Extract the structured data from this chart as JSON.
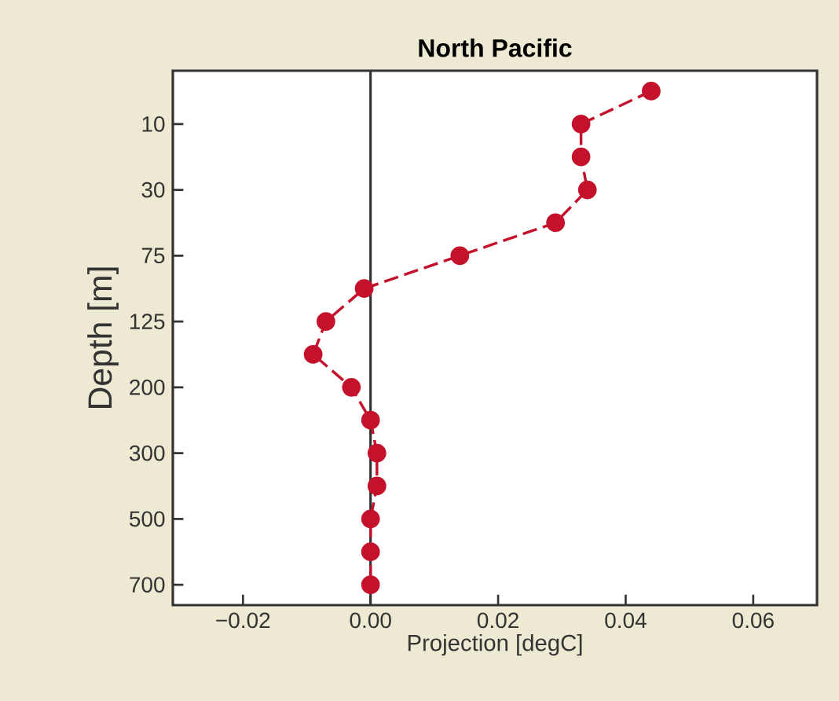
{
  "chart_data": {
    "type": "line",
    "title": "North Pacific",
    "xlabel": "Projection [degC]",
    "ylabel": "Depth [m]",
    "orientation": "horizontal",
    "categories": [
      null,
      "10",
      null,
      "30",
      null,
      "75",
      null,
      "125",
      null,
      "200",
      null,
      "300",
      null,
      "500",
      null,
      "700"
    ],
    "series": [
      {
        "color": "#c4122c",
        "values": [
          0.044,
          0.033,
          0.033,
          0.034,
          0.029,
          0.014,
          -0.001,
          -0.007,
          -0.009,
          -0.003,
          0.0,
          0.001,
          0.001,
          0.0,
          0.0,
          0.0
        ]
      }
    ],
    "xlim": [
      -0.031,
      0.07
    ],
    "xticks": [
      {
        "value": -0.02,
        "label": "−0.02"
      },
      {
        "value": 0,
        "label": "0.00"
      },
      {
        "value": 0.02,
        "label": "0.02"
      },
      {
        "value": 0.04,
        "label": "0.04"
      },
      {
        "value": 0.06,
        "label": "0.06"
      }
    ],
    "ref_lines": [
      {
        "axis": "x",
        "value": 0,
        "color": "#333333"
      }
    ],
    "marker": "circle",
    "line_style": "dashed"
  }
}
